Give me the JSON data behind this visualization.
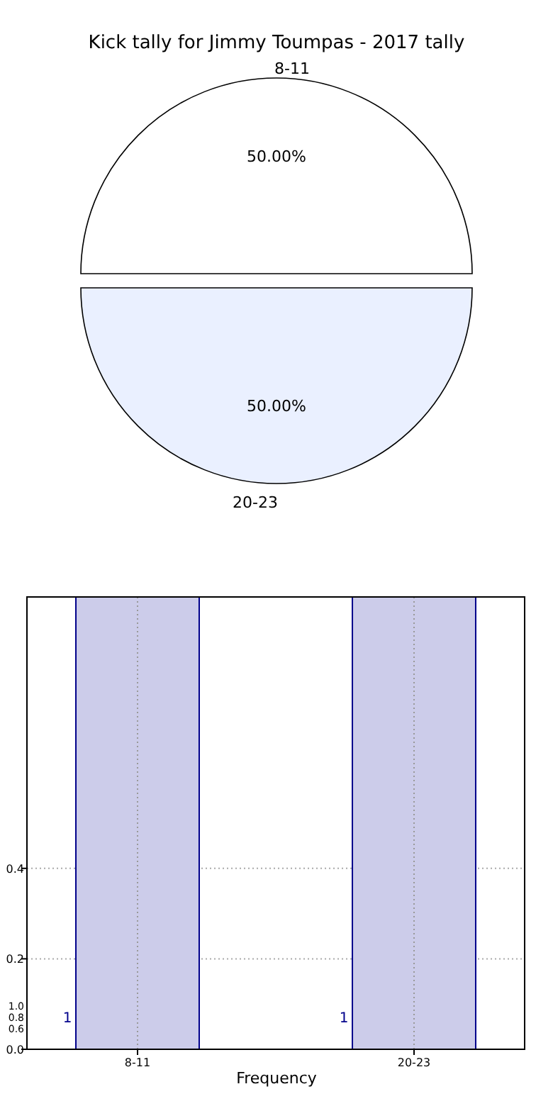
{
  "chart_data": [
    {
      "type": "pie",
      "title": "Kick tally for Jimmy Toumpas - 2017 tally",
      "categories": [
        "8-11",
        "20-23"
      ],
      "values": [
        50,
        50
      ],
      "colors": [
        "#ffffff",
        "#eaf0ff"
      ],
      "value_labels": [
        "50.00%",
        "50.00%"
      ]
    },
    {
      "type": "bar",
      "categories": [
        "8-11",
        "20-23"
      ],
      "values": [
        1,
        1
      ],
      "color": "#ccccea",
      "xlabel": "Frequency",
      "ylim": [
        0,
        1
      ],
      "yticks": [
        {
          "value": 0,
          "label": "0.0"
        },
        {
          "value": 0.2,
          "label": "0.2"
        },
        {
          "value": 0.4,
          "label": "0.4"
        }
      ],
      "annotations": [
        "1.0",
        "0.8",
        "0.6"
      ],
      "value_labels": [
        "1",
        "1"
      ],
      "grid": true
    }
  ]
}
